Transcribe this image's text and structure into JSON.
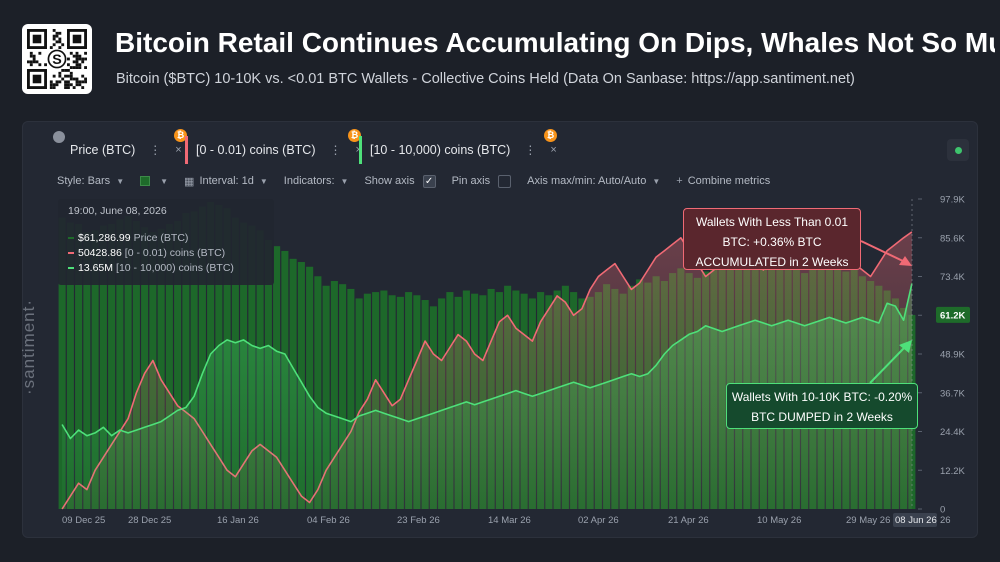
{
  "header": {
    "title": "Bitcoin Retail Continues Accumulating On Dips, Whales Not So Much...",
    "subtitle": "Bitcoin ($BTC) 10-10K vs. <0.01 BTC Wallets - Collective Coins Held (Data On Sanbase: https://app.santiment.net)",
    "qr_center_glyph": "S"
  },
  "metrics": [
    {
      "label": "Price (BTC)",
      "menu": "⋮",
      "close": "×",
      "badge": "₿",
      "color": "#22262f"
    },
    {
      "label": "[0 - 0.01) coins (BTC)",
      "menu": "⋮",
      "close": "×",
      "badge": "₿",
      "color": "#f06a75"
    },
    {
      "label": "[10 - 10,000) coins (BTC)",
      "menu": "⋮",
      "close": "×",
      "badge": "₿",
      "color": "#4ee07a"
    }
  ],
  "toolbar": {
    "style": "Style: Bars",
    "interval": "Interval: 1d",
    "indicators": "Indicators:",
    "show_axis": "Show axis",
    "pin_axis": "Pin axis",
    "axis_maxmin": "Axis max/min: Auto/Auto",
    "combine": "Combine metrics"
  },
  "tooltip": {
    "date": "19:00, June 08, 2026",
    "rows": [
      {
        "value": "$61,286.99",
        "label": "Price (BTC)",
        "color": "#1e6b2a"
      },
      {
        "value": "50428.86",
        "label": "[0 - 0.01) coins (BTC)",
        "color": "#f06a75"
      },
      {
        "value": "13.65M",
        "label": "[10 - 10,000) coins (BTC)",
        "color": "#4ee07a"
      }
    ]
  },
  "callouts": {
    "red": [
      "Wallets With Less Than 0.01",
      "BTC: +0.36% BTC",
      "ACCUMULATED in 2 Weeks"
    ],
    "green": [
      "Wallets With 10-10K BTC: -0.20%",
      "BTC DUMPED in 2 Weeks"
    ]
  },
  "watermark": "·santiment·",
  "chart_data": {
    "type": "bar",
    "x_tick_labels": [
      "09 Dec 25",
      "28 Dec 25",
      "16 Jan 26",
      "04 Feb 26",
      "23 Feb 26",
      "14 Mar 26",
      "02 Apr 26",
      "21 Apr 26",
      "10 May 26",
      "29 May 26",
      "08 Jun 26"
    ],
    "x_end_tick": "26",
    "y_ticks": [
      "97.9K",
      "85.6K",
      "73.4K",
      "61.2K",
      "48.9K",
      "36.7K",
      "24.4K",
      "12.2K",
      "0"
    ],
    "ylim": [
      0,
      97900
    ],
    "current_price_tag": "61.2K",
    "series": [
      {
        "name": "Price (BTC)",
        "color": "#1e6b2a",
        "style": "bars",
        "values": [
          92000,
          90500,
          90000,
          87500,
          88000,
          89500,
          90000,
          91500,
          92500,
          91000,
          89000,
          87500,
          88500,
          90000,
          91000,
          93500,
          94000,
          95500,
          97000,
          96000,
          95000,
          92000,
          90500,
          89500,
          88000,
          85000,
          83000,
          81500,
          79000,
          78000,
          76500,
          73500,
          70500,
          72000,
          71000,
          69500,
          66500,
          68000,
          68500,
          69000,
          67500,
          67000,
          68500,
          67500,
          66000,
          64000,
          66500,
          68500,
          67000,
          69000,
          68000,
          67500,
          69500,
          68500,
          70500,
          69000,
          68000,
          66500,
          68500,
          67500,
          69000,
          70500,
          68500,
          66500,
          67000,
          68500,
          71000,
          69500,
          68000,
          70500,
          72500,
          71500,
          73500,
          72000,
          74500,
          76000,
          74500,
          73000,
          75000,
          77500,
          79500,
          78000,
          76500,
          78500,
          80000,
          78500,
          77000,
          76500,
          78000,
          76000,
          74500,
          76000,
          77500,
          78000,
          76500,
          75000,
          76000,
          73500,
          72000,
          70500,
          69000,
          66500,
          63500,
          61300
        ]
      },
      {
        "name": "[0 - 0.01) coins (BTC)",
        "color": "#f06a75",
        "style": "line-area",
        "values": [
          50000,
          50020,
          50040,
          50030,
          50060,
          50080,
          50100,
          50120,
          50140,
          50180,
          50210,
          50230,
          50200,
          50180,
          50160,
          50150,
          50140,
          50120,
          50100,
          50080,
          50060,
          50050,
          50070,
          50090,
          50100,
          50090,
          50080,
          50060,
          50040,
          50020,
          50010,
          50030,
          50060,
          50080,
          50100,
          50120,
          50150,
          50170,
          50200,
          50180,
          50160,
          50170,
          50200,
          50230,
          50260,
          50240,
          50230,
          50250,
          50270,
          50260,
          50240,
          50230,
          50260,
          50290,
          50300,
          50280,
          50270,
          50260,
          50290,
          50310,
          50330,
          50320,
          50300,
          50310,
          50340,
          50360,
          50370,
          50380,
          50360,
          50340,
          50350,
          50370,
          50390,
          50400,
          50410,
          50420,
          50400,
          50380,
          50360,
          50370,
          50390,
          50410,
          50420,
          50400,
          50380,
          50370,
          50390,
          50410,
          50420,
          50410,
          50390,
          50380,
          50400,
          50420,
          50410,
          50390,
          50380,
          50370,
          50360,
          50380,
          50400,
          50410,
          50420,
          50429
        ],
        "ylim": [
          50000,
          50480
        ]
      },
      {
        "name": "[10 - 10,000) coins (BTC)",
        "color": "#4ee07a",
        "style": "line-area",
        "values": [
          13600000,
          13595000,
          13598000,
          13596000,
          13597000,
          13599000,
          13596000,
          13598000,
          13597000,
          13598000,
          13599000,
          13600000,
          13601000,
          13603000,
          13605000,
          13606000,
          13610000,
          13618000,
          13625000,
          13628000,
          13630000,
          13629000,
          13630000,
          13628000,
          13627000,
          13628000,
          13626000,
          13625000,
          13620000,
          13615000,
          13610000,
          13606000,
          13604000,
          13603000,
          13602000,
          13601000,
          13603000,
          13604000,
          13605000,
          13604000,
          13603000,
          13602000,
          13601000,
          13602000,
          13603000,
          13604000,
          13605000,
          13606000,
          13607000,
          13608000,
          13607000,
          13608000,
          13609000,
          13610000,
          13611000,
          13612000,
          13611000,
          13610000,
          13611000,
          13612000,
          13613000,
          13614000,
          13615000,
          13614000,
          13613000,
          13614000,
          13615000,
          13616000,
          13617000,
          13618000,
          13617000,
          13618000,
          13621000,
          13625000,
          13628000,
          13630000,
          13632000,
          13633000,
          13635000,
          13634000,
          13633000,
          13634000,
          13635000,
          13636000,
          13637000,
          13636000,
          13635000,
          13636000,
          13637000,
          13636000,
          13635000,
          13636000,
          13637000,
          13638000,
          13637000,
          13636000,
          13637000,
          13638000,
          13637000,
          13636000,
          13643000,
          13642000,
          13637000,
          13650000
        ],
        "ylim": [
          13570000,
          13680000
        ]
      }
    ],
    "grid": false,
    "legend": "top-left tooltip"
  }
}
